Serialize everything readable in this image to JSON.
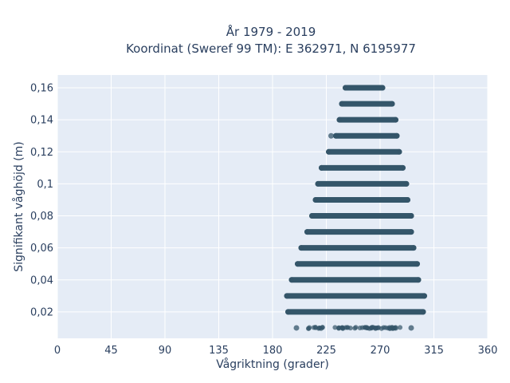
{
  "chart_data": {
    "type": "scatter",
    "title_line1": "År 1979 - 2019",
    "title_line2": "Koordinat (Sweref 99 TM): E 362971, N 6195977",
    "xlabel": "Vågriktning (grader)",
    "ylabel": "Signifikant våghöjd (m)",
    "xlim": [
      0,
      360
    ],
    "ylim": [
      0.0035,
      0.168
    ],
    "x_ticks": [
      0,
      45,
      90,
      135,
      180,
      225,
      270,
      315,
      360
    ],
    "x_tick_labels": [
      "0",
      "45",
      "90",
      "135",
      "180",
      "225",
      "270",
      "315",
      "360"
    ],
    "y_ticks": [
      0.02,
      0.04,
      0.06,
      0.08,
      0.1,
      0.12,
      0.14,
      0.16
    ],
    "y_tick_labels": [
      "0,02",
      "0,04",
      "0,06",
      "0,08",
      "0,1",
      "0,12",
      "0,14",
      "0,16"
    ],
    "grid": true,
    "marker_color": "#34566a",
    "plot_background": "#e5ecf6",
    "bands": [
      {
        "y": 0.01,
        "x_min": 200,
        "x_max": 295,
        "sparse": true
      },
      {
        "y": 0.02,
        "x_min": 193,
        "x_max": 306
      },
      {
        "y": 0.03,
        "x_min": 192,
        "x_max": 307
      },
      {
        "y": 0.04,
        "x_min": 196,
        "x_max": 302
      },
      {
        "y": 0.05,
        "x_min": 201,
        "x_max": 301
      },
      {
        "y": 0.06,
        "x_min": 204,
        "x_max": 298
      },
      {
        "y": 0.07,
        "x_min": 209,
        "x_max": 296
      },
      {
        "y": 0.08,
        "x_min": 213,
        "x_max": 296
      },
      {
        "y": 0.09,
        "x_min": 216,
        "x_max": 293
      },
      {
        "y": 0.1,
        "x_min": 218,
        "x_max": 292
      },
      {
        "y": 0.11,
        "x_min": 221,
        "x_max": 289
      },
      {
        "y": 0.12,
        "x_min": 227,
        "x_max": 286
      },
      {
        "y": 0.13,
        "x_min": 233,
        "x_max": 284
      },
      {
        "y": 0.14,
        "x_min": 236,
        "x_max": 283
      },
      {
        "y": 0.15,
        "x_min": 238,
        "x_max": 280
      },
      {
        "y": 0.16,
        "x_min": 241,
        "x_max": 272
      }
    ],
    "outliers": [
      {
        "x": 229,
        "y": 0.13
      },
      {
        "x": 221,
        "y": 0.11
      },
      {
        "x": 296,
        "y": 0.08
      },
      {
        "x": 200,
        "y": 0.01
      },
      {
        "x": 283,
        "y": 0.01
      },
      {
        "x": 296,
        "y": 0.01
      }
    ]
  }
}
